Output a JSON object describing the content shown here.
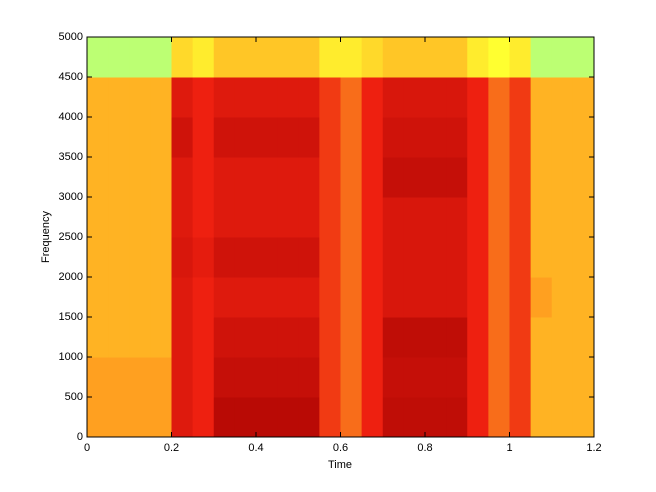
{
  "chart_data": {
    "type": "heatmap",
    "xlabel": "Time",
    "ylabel": "Frequency",
    "x": [
      0,
      0.05,
      0.1,
      0.15,
      0.2,
      0.25,
      0.3,
      0.35,
      0.4,
      0.45,
      0.5,
      0.55,
      0.6,
      0.65,
      0.7,
      0.75,
      0.8,
      0.85,
      0.9,
      0.95,
      1.0,
      1.05,
      1.1,
      1.15,
      1.2
    ],
    "y": [
      0,
      500,
      1000,
      1500,
      2000,
      2500,
      3000,
      3500,
      4000,
      4500,
      5000
    ],
    "z": [
      [
        0.5,
        0.5,
        0.5,
        0.5,
        0.8,
        0.75,
        0.92,
        0.92,
        0.92,
        0.92,
        0.92,
        0.7,
        0.6,
        0.75,
        0.9,
        0.9,
        0.9,
        0.9,
        0.75,
        0.6,
        0.7,
        0.45,
        0.45,
        0.45
      ],
      [
        0.5,
        0.5,
        0.5,
        0.5,
        0.8,
        0.75,
        0.88,
        0.88,
        0.88,
        0.88,
        0.88,
        0.7,
        0.6,
        0.75,
        0.88,
        0.88,
        0.88,
        0.88,
        0.75,
        0.6,
        0.7,
        0.45,
        0.45,
        0.45
      ],
      [
        0.45,
        0.45,
        0.45,
        0.45,
        0.8,
        0.75,
        0.85,
        0.85,
        0.85,
        0.85,
        0.85,
        0.7,
        0.6,
        0.75,
        0.9,
        0.9,
        0.9,
        0.9,
        0.75,
        0.6,
        0.7,
        0.45,
        0.45,
        0.45
      ],
      [
        0.45,
        0.45,
        0.45,
        0.45,
        0.8,
        0.75,
        0.8,
        0.8,
        0.8,
        0.8,
        0.8,
        0.7,
        0.6,
        0.75,
        0.82,
        0.82,
        0.82,
        0.82,
        0.75,
        0.6,
        0.7,
        0.5,
        0.45,
        0.45
      ],
      [
        0.45,
        0.45,
        0.45,
        0.45,
        0.82,
        0.78,
        0.85,
        0.85,
        0.85,
        0.85,
        0.85,
        0.7,
        0.6,
        0.75,
        0.82,
        0.82,
        0.82,
        0.82,
        0.75,
        0.6,
        0.7,
        0.45,
        0.45,
        0.45
      ],
      [
        0.45,
        0.45,
        0.45,
        0.45,
        0.8,
        0.75,
        0.8,
        0.8,
        0.8,
        0.8,
        0.8,
        0.7,
        0.6,
        0.75,
        0.82,
        0.82,
        0.82,
        0.82,
        0.75,
        0.6,
        0.7,
        0.45,
        0.45,
        0.45
      ],
      [
        0.45,
        0.45,
        0.45,
        0.45,
        0.8,
        0.75,
        0.8,
        0.8,
        0.8,
        0.8,
        0.8,
        0.7,
        0.6,
        0.75,
        0.88,
        0.88,
        0.88,
        0.88,
        0.75,
        0.6,
        0.7,
        0.45,
        0.45,
        0.45
      ],
      [
        0.45,
        0.45,
        0.45,
        0.45,
        0.85,
        0.75,
        0.85,
        0.85,
        0.85,
        0.85,
        0.85,
        0.7,
        0.6,
        0.75,
        0.85,
        0.85,
        0.85,
        0.85,
        0.75,
        0.6,
        0.7,
        0.45,
        0.45,
        0.45
      ],
      [
        0.45,
        0.45,
        0.45,
        0.45,
        0.8,
        0.75,
        0.8,
        0.8,
        0.8,
        0.8,
        0.8,
        0.7,
        0.6,
        0.75,
        0.82,
        0.82,
        0.82,
        0.82,
        0.75,
        0.6,
        0.7,
        0.45,
        0.45,
        0.45
      ],
      [
        0.12,
        0.12,
        0.12,
        0.12,
        0.35,
        0.3,
        0.4,
        0.4,
        0.4,
        0.4,
        0.4,
        0.3,
        0.3,
        0.35,
        0.4,
        0.4,
        0.4,
        0.4,
        0.3,
        0.25,
        0.3,
        0.12,
        0.12,
        0.12
      ]
    ],
    "colormap": [
      "#7fffb0",
      "#ffff30",
      "#ffa020",
      "#ee2010",
      "#a00000"
    ],
    "xlim": [
      0,
      1.2
    ],
    "xticks": [
      0,
      0.2,
      0.4,
      0.6,
      0.8,
      1,
      1.2
    ],
    "ylim": [
      0,
      5000
    ],
    "yticks": [
      0,
      500,
      1000,
      1500,
      2000,
      2500,
      3000,
      3500,
      4000,
      4500,
      5000
    ]
  }
}
